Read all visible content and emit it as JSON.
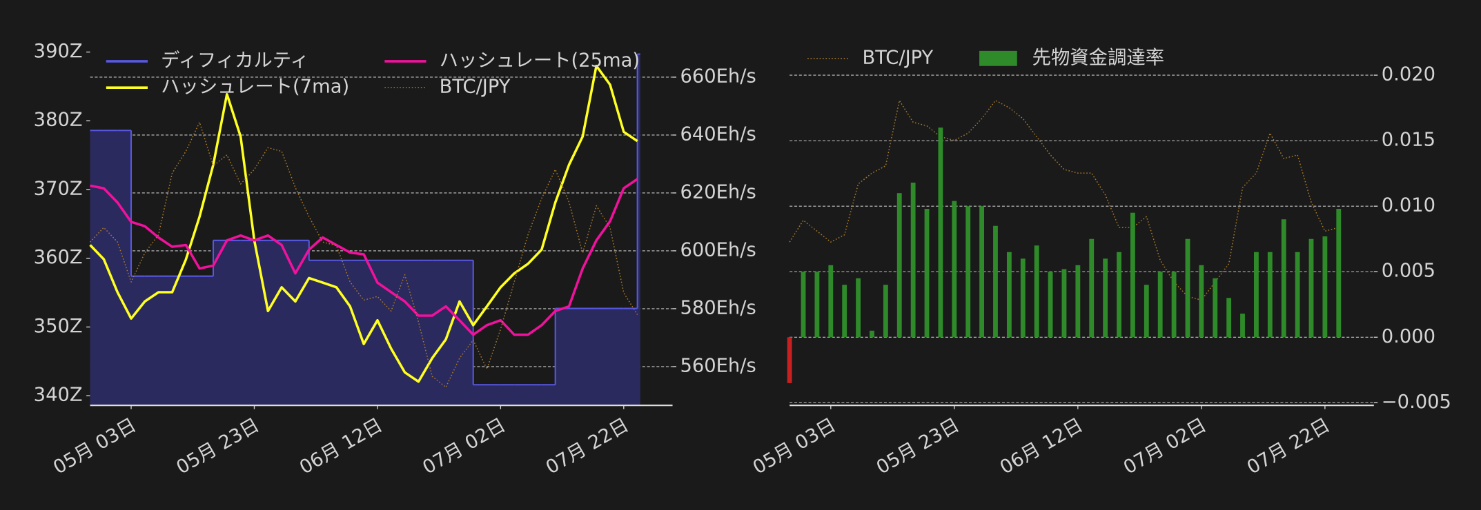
{
  "chart_data": [
    {
      "type": "line",
      "x": [
        0,
        3,
        6,
        9,
        12,
        15,
        18,
        21,
        24,
        27,
        30,
        33,
        36,
        39,
        42,
        45,
        48,
        51,
        54,
        57,
        60,
        63,
        66,
        69,
        72,
        75,
        78,
        81,
        84,
        87,
        90,
        93,
        96,
        99,
        102,
        105,
        108,
        111,
        114,
        117,
        120
      ],
      "xlim": [
        0,
        127.7
      ],
      "xticks": [
        {
          "value": 9,
          "label": "05月 03日"
        },
        {
          "value": 36,
          "label": "05月 23日"
        },
        {
          "value": 63,
          "label": "06月 12日"
        },
        {
          "value": 90,
          "label": "07月 02日"
        },
        {
          "value": 117,
          "label": "07月 22日"
        }
      ],
      "ylim": [
        338.6,
        391.4
      ],
      "yticks": [
        {
          "value": 340,
          "label": "340Z"
        },
        {
          "value": 350,
          "label": "350Z"
        },
        {
          "value": 360,
          "label": "360Z"
        },
        {
          "value": 370,
          "label": "370Z"
        },
        {
          "value": 380,
          "label": "380Z"
        },
        {
          "value": 390,
          "label": "390Z"
        }
      ],
      "y2lim": [
        546.6,
        672
      ],
      "y2ticks": [
        {
          "value": 560,
          "label": "560Eh/s"
        },
        {
          "value": 580,
          "label": "580Eh/s"
        },
        {
          "value": 600,
          "label": "600Eh/s"
        },
        {
          "value": 620,
          "label": "620Eh/s"
        },
        {
          "value": 640,
          "label": "640Eh/s"
        },
        {
          "value": 660,
          "label": "660Eh/s"
        }
      ],
      "y3lim": [
        0,
        100
      ],
      "ytick_side": "left",
      "grid": "y2",
      "legend": "upper left",
      "legend_columns": 2,
      "series": [
        {
          "name": "ディフィカルティ",
          "color": "#5858e0",
          "fill": "#2a2a5e",
          "step": "post",
          "values": [
            378.6,
            378.6,
            378.6,
            357.4,
            357.4,
            357.4,
            357.4,
            357.4,
            357.4,
            362.6,
            362.6,
            362.6,
            362.6,
            362.6,
            362.6,
            362.6,
            359.7,
            359.7,
            359.7,
            359.7,
            359.7,
            359.7,
            359.7,
            359.7,
            359.7,
            359.7,
            359.7,
            359.7,
            341.6,
            341.6,
            341.6,
            341.6,
            341.6,
            341.6,
            352.7,
            352.7,
            352.7,
            352.7,
            352.7,
            352.7,
            389.7
          ]
        },
        {
          "name": "ハッシュレート(7ma)",
          "color": "#ffff22",
          "axis": "y2",
          "values": [
            602,
            597.1,
            585.7,
            576.6,
            582.5,
            585.7,
            585.7,
            597,
            611.8,
            629.7,
            654.1,
            639.5,
            603.6,
            579.2,
            587.4,
            582.5,
            590.6,
            589,
            587.4,
            580.8,
            567.8,
            576,
            566.2,
            558,
            554.8,
            562.9,
            569.4,
            582.5,
            574.3,
            580.8,
            587.4,
            592.2,
            595.5,
            600.4,
            616.7,
            629.7,
            639.5,
            663.9,
            657.4,
            641.1,
            637.9
          ]
        },
        {
          "name": "ハッシュレート(25ma)",
          "color": "#f0129c",
          "axis": "y2",
          "values": [
            622.5,
            621.6,
            616.7,
            610,
            608.5,
            604.6,
            601.4,
            602,
            593.9,
            594.9,
            603.6,
            605.3,
            603.6,
            605.3,
            602,
            592.2,
            600.4,
            604.6,
            602,
            599.4,
            598.8,
            589,
            585.7,
            582.5,
            577.6,
            577.6,
            580.8,
            576,
            571,
            574.3,
            576,
            571,
            571,
            574.3,
            579.2,
            580.8,
            593.9,
            603.6,
            610.2,
            621.6,
            624.8
          ]
        },
        {
          "name": "BTC/JPY",
          "color": "#a87a2c",
          "axis": "y3",
          "dash": "dotted",
          "values": [
            45,
            49,
            45,
            34,
            42,
            47,
            64,
            70,
            78,
            66,
            69,
            61,
            65,
            71,
            70,
            60,
            52,
            45,
            44,
            34,
            29,
            30,
            26,
            36,
            23,
            8,
            5,
            13,
            18,
            10,
            21,
            34,
            47,
            57,
            65,
            56,
            42,
            55,
            49,
            31,
            25
          ]
        }
      ]
    },
    {
      "type": "bar",
      "x": [
        0,
        3,
        6,
        9,
        12,
        15,
        18,
        21,
        24,
        27,
        30,
        33,
        36,
        39,
        42,
        45,
        48,
        51,
        54,
        57,
        60,
        63,
        66,
        69,
        72,
        75,
        78,
        81,
        84,
        87,
        90,
        93,
        96,
        99,
        102,
        105,
        108,
        111,
        114,
        117,
        120
      ],
      "xlim": [
        0,
        127.7
      ],
      "xticks": [
        {
          "value": 9,
          "label": "05月 03日"
        },
        {
          "value": 36,
          "label": "05月 23日"
        },
        {
          "value": 63,
          "label": "06月 12日"
        },
        {
          "value": 90,
          "label": "07月 02日"
        },
        {
          "value": 117,
          "label": "07月 22日"
        }
      ],
      "ylim": [
        -0.0052,
        0.0225
      ],
      "yticks": [
        {
          "value": -0.005,
          "label": "−0.005"
        },
        {
          "value": 0,
          "label": "0.000"
        },
        0.005,
        {
          "value": 0.01,
          "label": "0.010"
        },
        0.015,
        {
          "value": 0.02,
          "label": "0.020"
        }
      ],
      "y3lim": [
        0,
        100
      ],
      "ytick_side": "right",
      "grid": "y",
      "legend": "upper left",
      "legend_columns": 2,
      "series": [
        {
          "name": "BTC/JPY",
          "type": "line",
          "color": "#a87a2c",
          "axis": "y3",
          "dash": "dotted",
          "values": [
            45,
            51,
            48,
            45,
            47,
            61,
            64,
            66,
            84,
            78,
            77,
            74,
            73,
            75,
            79,
            84,
            82,
            79,
            74,
            69,
            65,
            64,
            64,
            58,
            49,
            49,
            52,
            40,
            34,
            30,
            29,
            34,
            39,
            60,
            64,
            75,
            68,
            69,
            56,
            48,
            49
          ]
        },
        {
          "name": "先物資金調達率",
          "type": "bar",
          "color": "#2f8a2a",
          "negative_color": "#c82020",
          "values": [
            -0.0035,
            0.005,
            0.005,
            0.0055,
            0.004,
            0.0045,
            0.0005,
            0.004,
            0.011,
            0.0118,
            0.0098,
            0.016,
            0.0104,
            0.01,
            0.01,
            0.0085,
            0.0065,
            0.006,
            0.007,
            0.005,
            0.0052,
            0.0055,
            0.0075,
            0.006,
            0.0065,
            0.0095,
            0.004,
            0.005,
            0.005,
            0.0075,
            0.0055,
            0.0045,
            0.003,
            0.0018,
            0.0065,
            0.0065,
            0.009,
            0.0065,
            0.0075,
            0.0077,
            0.0098
          ]
        }
      ]
    }
  ]
}
